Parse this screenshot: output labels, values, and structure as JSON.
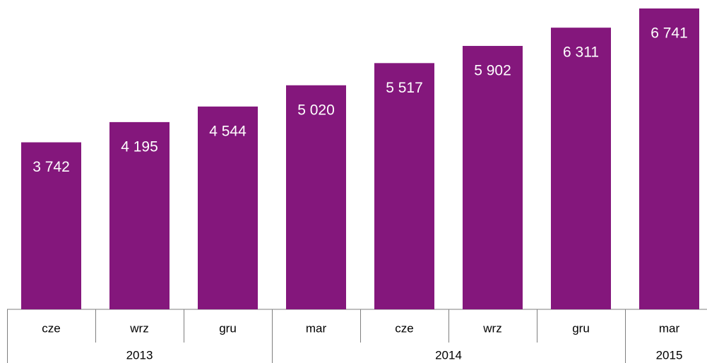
{
  "chart_data": {
    "type": "bar",
    "categories": [
      "cze",
      "wrz",
      "gru",
      "mar",
      "cze",
      "wrz",
      "gru",
      "mar"
    ],
    "groups": [
      {
        "name": "2013",
        "count": 3
      },
      {
        "name": "2014",
        "count": 4
      },
      {
        "name": "2015",
        "count": 1
      }
    ],
    "values": [
      3742,
      4195,
      4544,
      5020,
      5517,
      5902,
      6311,
      6741
    ],
    "value_labels": [
      "3 742",
      "4 195",
      "4 544",
      "5 020",
      "5 517",
      "5 902",
      "6 311",
      "6 741"
    ],
    "color": "#84177c",
    "grid": false
  }
}
